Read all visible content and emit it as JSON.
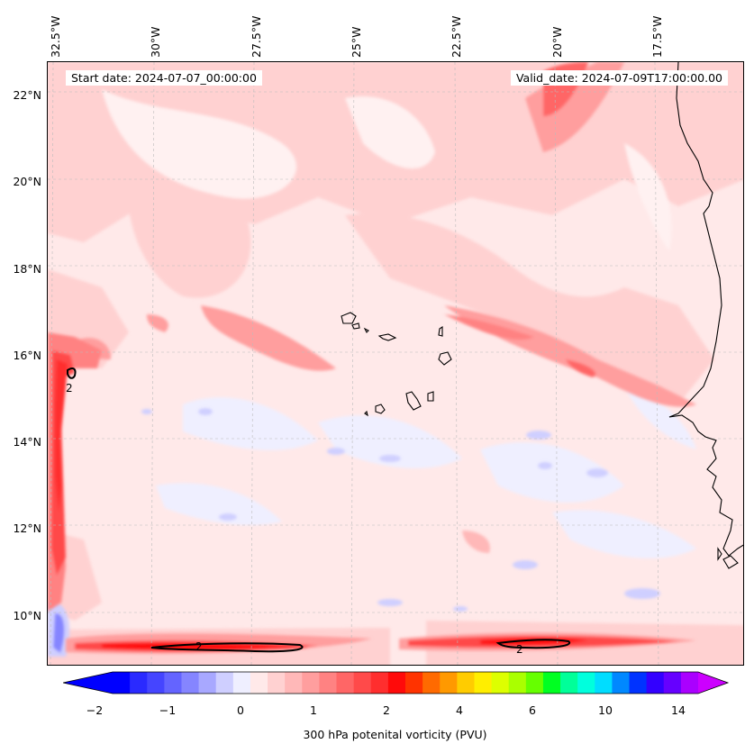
{
  "start_date": "Start date: 2024-07-07_00:00:00",
  "valid_date": "Valid_date: 2024-07-09T17:00:00.00",
  "lon_labels": [
    "32.5°W",
    "30°W",
    "27.5°W",
    "25°W",
    "22.5°W",
    "20°W",
    "17.5°W"
  ],
  "lat_labels": [
    "22°N",
    "20°N",
    "18°N",
    "16°N",
    "14°N",
    "12°N",
    "10°N"
  ],
  "contour_label": "2",
  "colorbar": {
    "title": "300 hPa potenital vorticity (PVU)",
    "ticks": [
      "−2",
      "−1",
      "0",
      "1",
      "2",
      "4",
      "6",
      "10",
      "14"
    ],
    "colors": [
      "#0000ff",
      "#2a2aff",
      "#4545ff",
      "#6464ff",
      "#8585ff",
      "#a8a8ff",
      "#cfcfff",
      "#efefff",
      "#ffe9e9",
      "#ffd1d1",
      "#ffb8b8",
      "#ff9e9e",
      "#ff8282",
      "#ff6666",
      "#ff4a4a",
      "#ff2e2e",
      "#ff0a0a",
      "#ff3300",
      "#ff6a00",
      "#ff9900",
      "#ffcc00",
      "#ffee00",
      "#ddff00",
      "#aaff00",
      "#66ff00",
      "#00ff22",
      "#00ff99",
      "#00ffdd",
      "#00ddff",
      "#0088ff",
      "#0033ff",
      "#3300ff",
      "#6600ff",
      "#aa00ff"
    ],
    "under_color": "#0000ff",
    "over_color": "#cc00ff"
  }
}
